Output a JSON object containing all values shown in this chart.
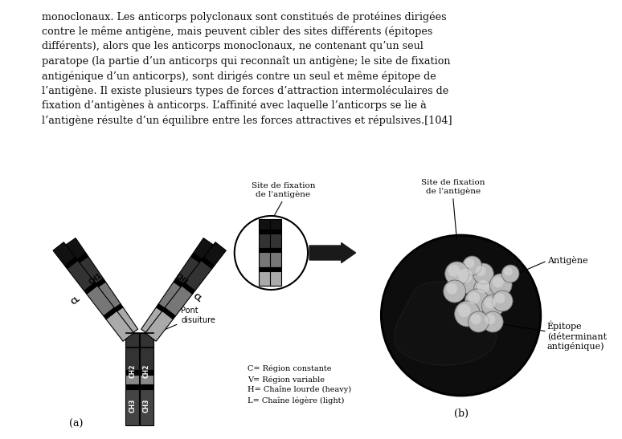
{
  "background_color": "#ffffff",
  "fig_width": 7.74,
  "fig_height": 5.47,
  "dpi": 100,
  "text_paragraph": [
    "monoclonaux. Les anticorps polyclonaux sont constitués de protéines dirigées",
    "contre le même antigène, mais peuvent cibler des sites différents (épitopes",
    "différents), alors que les anticorps monoclonaux, ne contenant qu’un seul",
    "paratope (la partie d’un anticorps qui reconnaît un antigène; le site de fixation",
    "antigénique d’un anticorps), sont dirigés contre un seul et même épitope de",
    "l’antigène. Il existe plusieurs types de forces d’attraction intermoléculaires de",
    "fixation d’antigènes à anticorps. L’affinité avec laquelle l’anticorps se lie à",
    "l’antigène résulte d’un équilibre entre les forces attractives et répulsives.[104]"
  ],
  "text_fontsize": 9.2,
  "text_color": "#111111",
  "label_a": "(a)",
  "label_b": "(b)",
  "legend_lines": [
    "C= Région constante",
    "V= Région variable",
    "H= Chaîne lourde (heavy)",
    "L= Chaîne légère (light)"
  ],
  "annot_pont": "Pont\ndisuiture",
  "annot_site_fixation_a": "Site de fixation\nde l'antigène",
  "annot_site_fixation_b": "Site de fixation\nde l'antigène",
  "annot_antigene": "Antigène",
  "annot_epitope": "Épitope\n(déterminant\nantigénique)"
}
